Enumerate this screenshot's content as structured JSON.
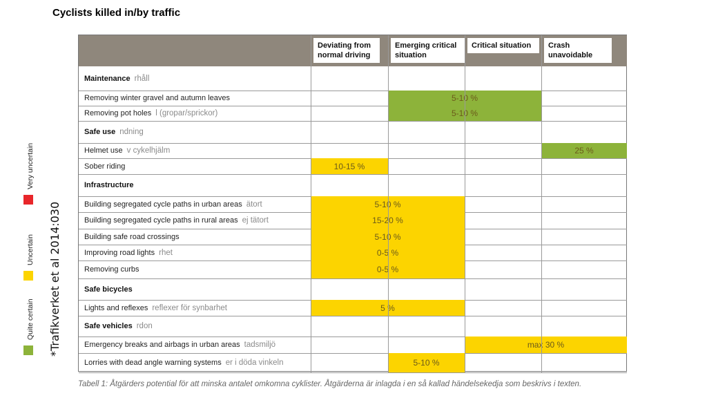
{
  "title": "Cyclists killed in/by traffic",
  "colors": {
    "header": "#8f877c",
    "green": "#8db33a",
    "yellow": "#fcd400",
    "red": "#e8262a"
  },
  "columns": [
    "Deviating from normal driving",
    "Emerging critical situation",
    "Critical situation",
    "Crash unavoidable"
  ],
  "rows": [
    {
      "type": "heading",
      "label": "Maintenance",
      "ghost": "rhåll"
    },
    {
      "type": "item",
      "label": "Removing winter gravel and autumn leaves",
      "value": "5-10 %",
      "from": 1,
      "to": 2,
      "color": "green"
    },
    {
      "type": "item",
      "label": "Removing pot holes",
      "ghost": "l (gropar/sprickor)",
      "value": "5-10 %",
      "from": 1,
      "to": 2,
      "color": "green"
    },
    {
      "type": "heading",
      "label": "Safe use",
      "ghost": "ndning"
    },
    {
      "type": "item",
      "label": "Helmet use",
      "ghost": "v cykelhjälm",
      "value": "25 %",
      "from": 3,
      "to": 3,
      "color": "green"
    },
    {
      "type": "item",
      "label": "Sober riding",
      "value": "10-15 %",
      "from": 0,
      "to": 0,
      "color": "yellow"
    },
    {
      "type": "heading",
      "label": "Infrastructure"
    },
    {
      "type": "item",
      "label": "Building segregated cycle paths in urban areas",
      "ghost": "ätort",
      "value": "5-10 %",
      "from": 0,
      "to": 1,
      "color": "yellow"
    },
    {
      "type": "item",
      "label": "Building segregated cycle paths in rural areas",
      "ghost": "ej tätort",
      "value": "15-20 %",
      "from": 0,
      "to": 1,
      "color": "yellow"
    },
    {
      "type": "item",
      "label": "Building safe road crossings",
      "value": "5-10 %",
      "from": 0,
      "to": 1,
      "color": "yellow"
    },
    {
      "type": "item",
      "label": "Improving road lights",
      "ghost": "rhet",
      "value": "0-5 %",
      "from": 0,
      "to": 1,
      "color": "yellow"
    },
    {
      "type": "item",
      "label": "Removing curbs",
      "value": "0-5 %",
      "from": 0,
      "to": 1,
      "color": "yellow"
    },
    {
      "type": "heading",
      "label": "Safe bicycles"
    },
    {
      "type": "item",
      "label": "Lights and reflexes",
      "ghost": "reflexer för synbarhet",
      "value": "5 %",
      "from": 0,
      "to": 1,
      "color": "yellow"
    },
    {
      "type": "heading",
      "label": "Safe vehicles",
      "ghost": "rdon"
    },
    {
      "type": "item",
      "label": "Emergency breaks and airbags in urban areas",
      "ghost": "tadsmiljö",
      "value": "max 30 %",
      "from": 2,
      "to": 3,
      "color": "yellow"
    },
    {
      "type": "item",
      "label": "Lorries with dead angle warning systems",
      "ghost": "er i döda vinkeln",
      "value": "5-10 %",
      "from": 1,
      "to": 1,
      "color": "yellow"
    }
  ],
  "caption": "Tabell 1: Åtgärders potential för att minska antalet omkomna cyklister. Åtgärderna är inlagda i en så kallad händelsekedja som beskrivs i texten.",
  "legend": [
    {
      "label": "Quite certain",
      "color": "green"
    },
    {
      "label": "Uncertain",
      "color": "yellow"
    },
    {
      "label": "Very uncertain",
      "color": "red"
    }
  ],
  "source": "*Trafikverket et al 2014:030"
}
